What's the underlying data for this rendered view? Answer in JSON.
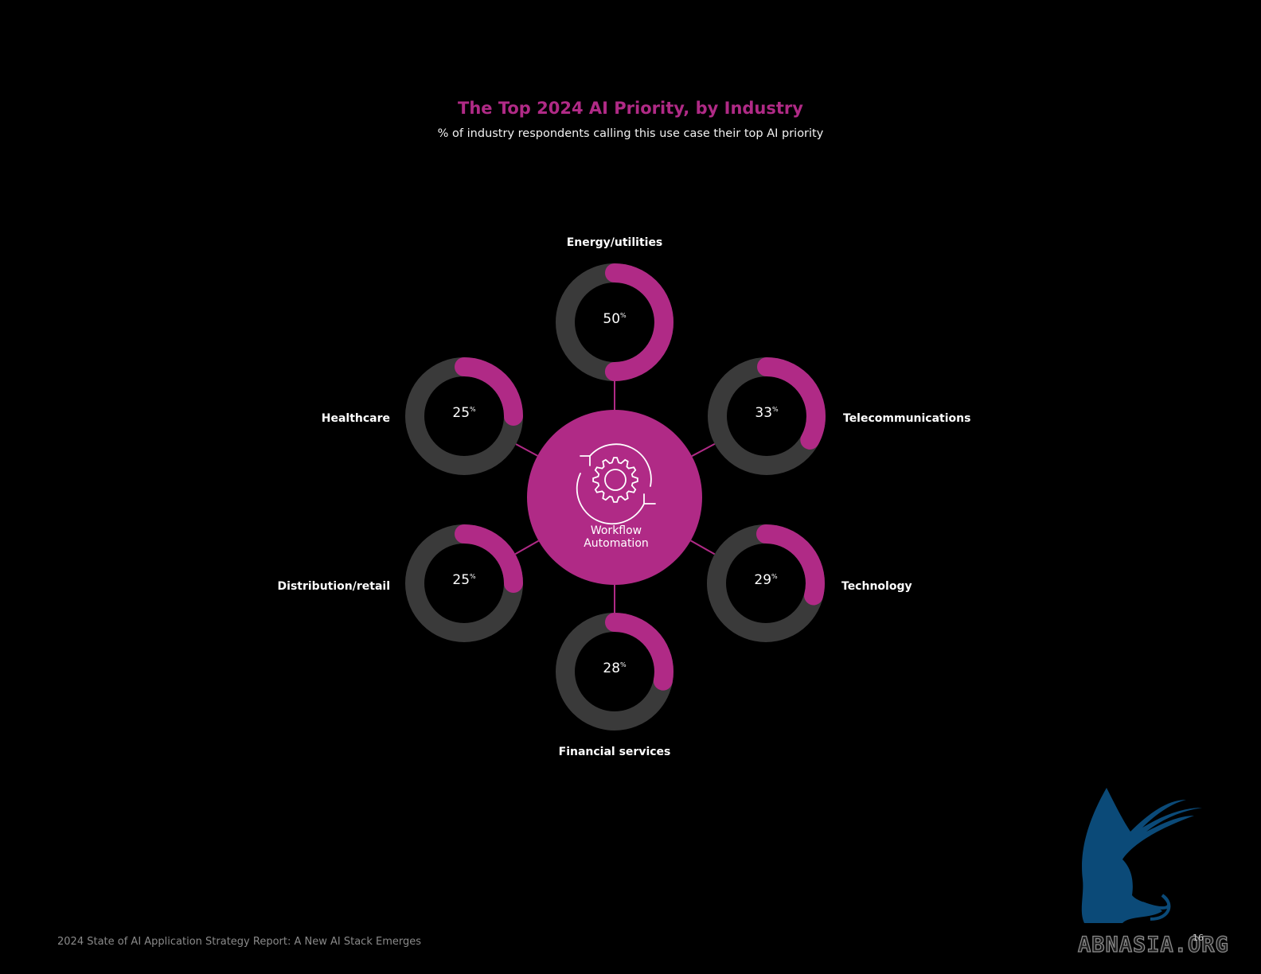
{
  "chart_data": {
    "type": "donut",
    "title": "The Top 2024 AI Priority, by Industry",
    "subtitle": "% of industry respondents calling this use case their top AI priority",
    "center_label_line1": "Workflow",
    "center_label_line2": "Automation",
    "center_icon": "gear-cycle-icon",
    "unit": "%",
    "categories": [
      "Energy/utilities",
      "Telecommunications",
      "Technology",
      "Financial services",
      "Distribution/retail",
      "Healthcare"
    ],
    "values": [
      50,
      33,
      29,
      28,
      25,
      25
    ]
  },
  "colors": {
    "accent": "#b02a86",
    "track": "#3a3a3a",
    "background": "#000000"
  },
  "footer": {
    "report_title": "2024 State of AI Application Strategy Report: A New AI Stack Emerges",
    "page_number": "16"
  },
  "watermark": {
    "text": "ABNASIA.ORG",
    "icon": "griffin-logo-icon"
  }
}
